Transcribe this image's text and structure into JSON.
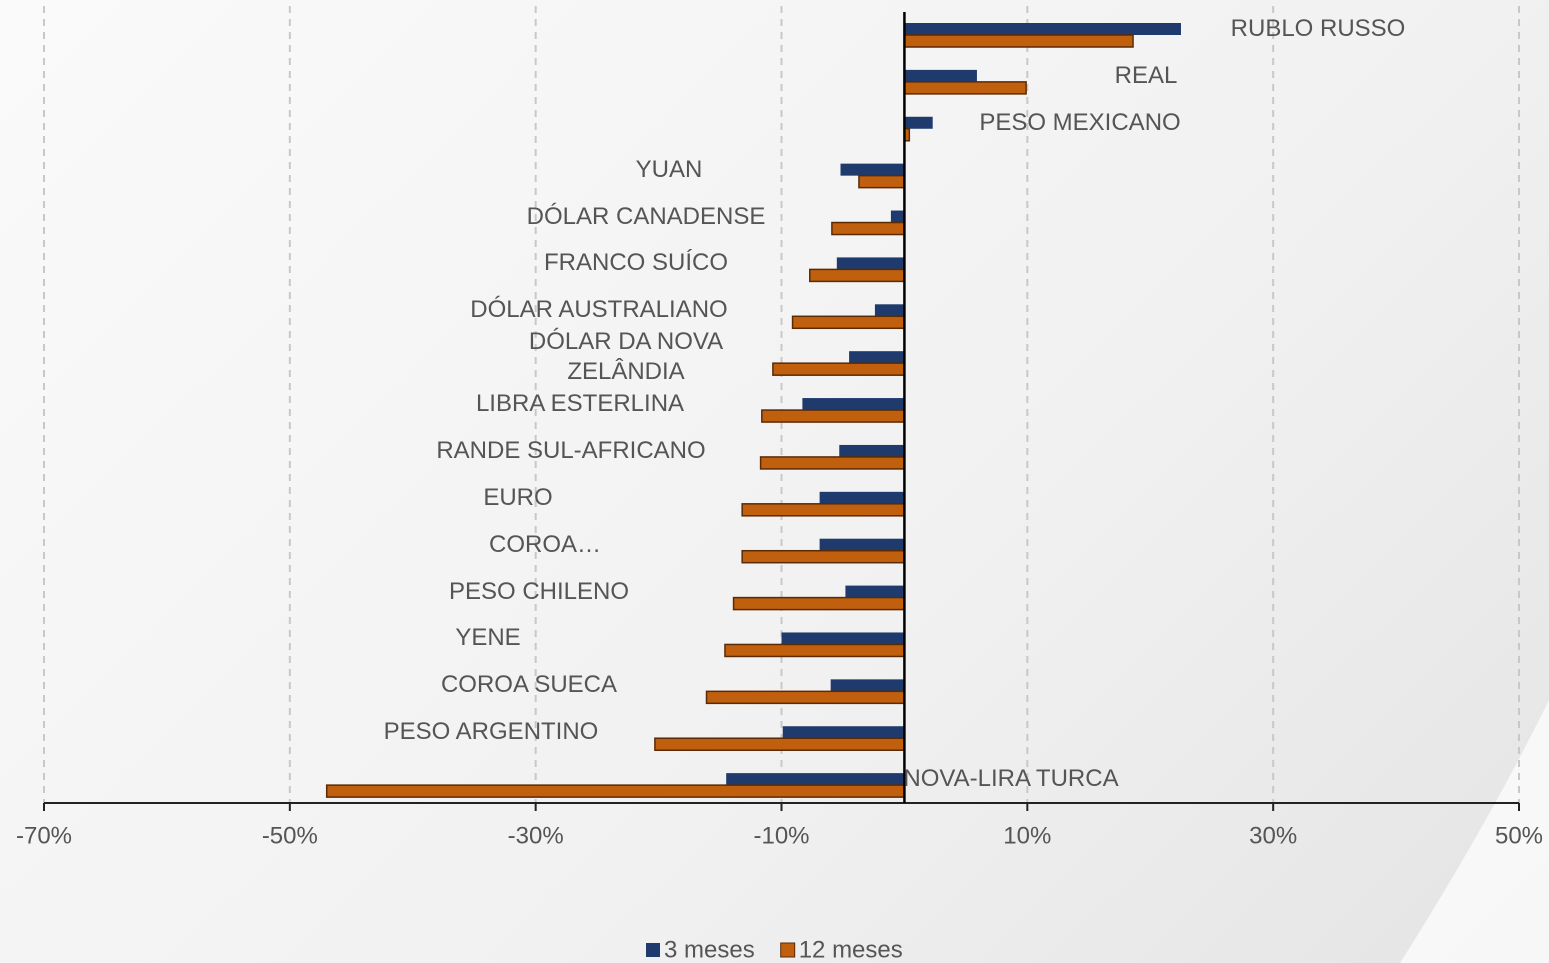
{
  "chart_data": {
    "type": "bar",
    "orientation": "horizontal",
    "categories": [
      "RUBLO RUSSO",
      "REAL",
      "PESO MEXICANO",
      "YUAN",
      "DÓLAR CANADENSE",
      "FRANCO SUÍCO",
      "DÓLAR AUSTRALIANO",
      "DÓLAR DA NOVA ZELÂNDIA",
      "LIBRA ESTERLINA",
      "RANDE SUL-AFRICANO",
      "EURO",
      "COROA…",
      "PESO CHILENO",
      "YENE",
      "COROA SUECA",
      "PESO ARGENTINO",
      "NOVA-LIRA TURCA"
    ],
    "series": [
      {
        "name": "3 meses",
        "color": "#1f3b6e",
        "values": [
          22.5,
          5.9,
          2.3,
          -5.2,
          -1.1,
          -5.5,
          -2.4,
          -4.5,
          -8.3,
          -5.3,
          -6.9,
          -6.9,
          -4.8,
          -10.0,
          -6.0,
          -9.9,
          -14.5
        ]
      },
      {
        "name": "12 meses",
        "color": "#c0600f",
        "values": [
          18.6,
          9.9,
          0.4,
          -3.7,
          -5.9,
          -7.7,
          -9.1,
          -10.7,
          -11.6,
          -11.7,
          -13.2,
          -13.2,
          -13.9,
          -14.6,
          -16.1,
          -20.3,
          -47.0
        ]
      }
    ],
    "xlim": [
      -70,
      50
    ],
    "xticks": [
      {
        "value": -70,
        "label": "-70%"
      },
      {
        "value": -50,
        "label": "-50%"
      },
      {
        "value": -30,
        "label": "-30%"
      },
      {
        "value": -10,
        "label": "-10%"
      },
      {
        "value": 10,
        "label": "10%"
      },
      {
        "value": 30,
        "label": "30%"
      },
      {
        "value": 50,
        "label": "50%"
      }
    ],
    "grid": true,
    "legend": "bottom"
  }
}
